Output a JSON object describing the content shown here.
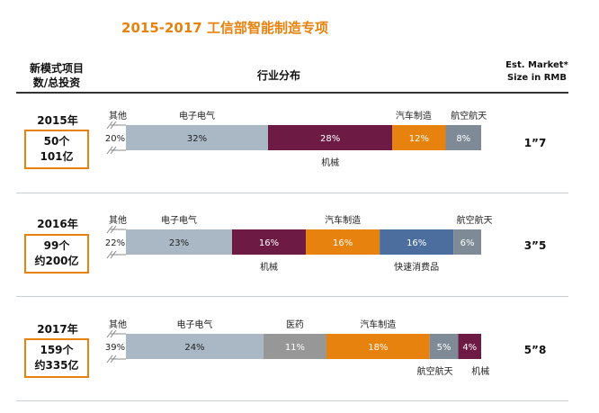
{
  "page": {
    "title": "2015-2017 工信部智能制造专项",
    "header_left": "新模式项目\n数/总投资",
    "header_mid": "行业分布",
    "header_right": "Est. Market*\nSize in RMB"
  },
  "colors": {
    "其他": "#ffffff",
    "电子电气": "#a9b8c4",
    "机械": "#6d1a45",
    "汽车制造": "#e8820e",
    "航空航天": "#7e8b96",
    "快速消费品": "#4c6e9e",
    "医药": "#979797",
    "title": "#e8820e"
  },
  "chart_data": [
    {
      "type": "bar",
      "stacked": true,
      "orientation": "horizontal",
      "year_label": "2015年",
      "box_text": "50个\n101亿",
      "market_size": "1”7",
      "series": [
        {
          "name": "其他",
          "values": [
            20
          ],
          "label": "20%"
        },
        {
          "name": "电子电气",
          "values": [
            32
          ],
          "label": "32%"
        },
        {
          "name": "机械",
          "values": [
            28
          ],
          "label": "28%"
        },
        {
          "name": "汽车制造",
          "values": [
            12
          ],
          "label": "12%"
        },
        {
          "name": "航空航天",
          "values": [
            8
          ],
          "label": "8%"
        }
      ]
    },
    {
      "type": "bar",
      "stacked": true,
      "orientation": "horizontal",
      "year_label": "2016年",
      "box_text": "99个\n约200亿",
      "market_size": "3”5",
      "series": [
        {
          "name": "其他",
          "values": [
            22
          ],
          "label": "22%"
        },
        {
          "name": "电子电气",
          "values": [
            23
          ],
          "label": "23%"
        },
        {
          "name": "机械",
          "values": [
            16
          ],
          "label": "16%"
        },
        {
          "name": "汽车制造",
          "values": [
            16
          ],
          "label": "16%"
        },
        {
          "name": "快速消费品",
          "values": [
            16
          ],
          "label": "16%"
        },
        {
          "name": "航空航天",
          "values": [
            6
          ],
          "label": "6%"
        }
      ]
    },
    {
      "type": "bar",
      "stacked": true,
      "orientation": "horizontal",
      "year_label": "2017年",
      "box_text": "159个\n约335亿",
      "market_size": "5”8",
      "series": [
        {
          "name": "其他",
          "values": [
            39
          ],
          "label": "39%"
        },
        {
          "name": "电子电气",
          "values": [
            24
          ],
          "label": "24%"
        },
        {
          "name": "医药",
          "values": [
            11
          ],
          "label": "11%"
        },
        {
          "name": "汽车制造",
          "values": [
            18
          ],
          "label": "18%"
        },
        {
          "name": "航空航天",
          "values": [
            5
          ],
          "label": "5%"
        },
        {
          "name": "机械",
          "values": [
            4
          ],
          "label": "4%"
        }
      ]
    }
  ]
}
